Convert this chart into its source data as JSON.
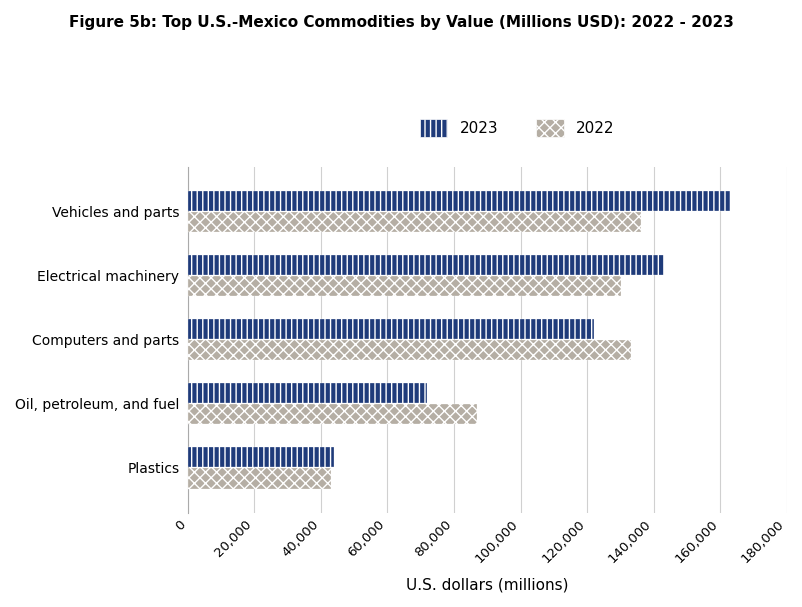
{
  "title": "Figure 5b: Top U.S.-Mexico Commodities by Value (Millions USD): 2022 - 2023",
  "categories": [
    "Vehicles and parts",
    "Electrical machinery",
    "Computers and parts",
    "Oil, petroleum, and fuel",
    "Plastics"
  ],
  "values_2023": [
    163000,
    143000,
    122000,
    72000,
    44000
  ],
  "values_2022": [
    136000,
    130000,
    133000,
    87000,
    43000
  ],
  "color_2023": "#1f3b7a",
  "color_2022": "#b5aeA4",
  "xlabel": "U.S. dollars (millions)",
  "xlim": [
    0,
    180000
  ],
  "xticks": [
    0,
    20000,
    40000,
    60000,
    80000,
    100000,
    120000,
    140000,
    160000,
    180000
  ],
  "background_color": "#ffffff",
  "legend_2023": "2023",
  "legend_2022": "2022",
  "title_fontsize": 11,
  "xlabel_fontsize": 11,
  "tick_fontsize": 9.5,
  "bar_height": 0.32,
  "bar_gap": 0.01
}
